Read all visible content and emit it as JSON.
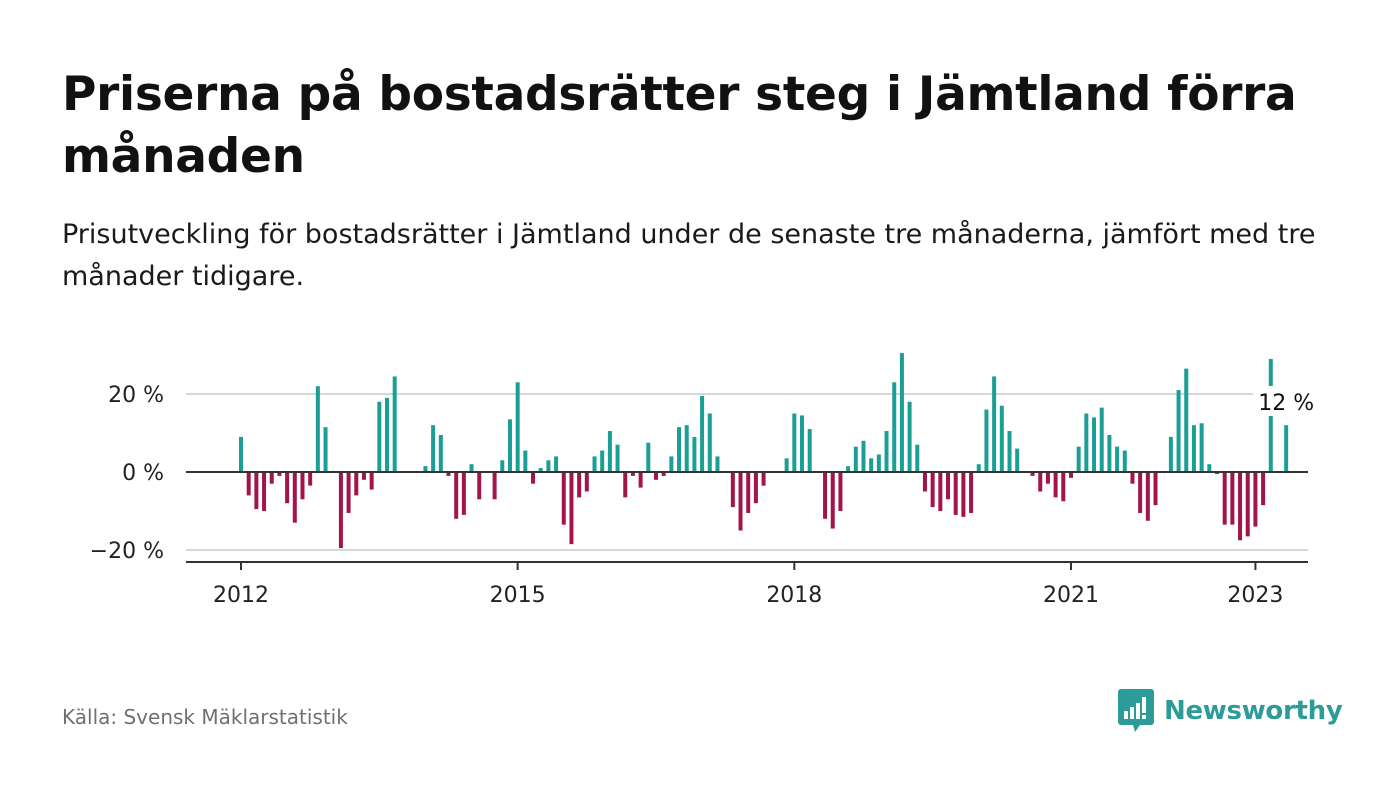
{
  "title": "Priserna på bostadsrätter steg i Jämtland förra månaden",
  "subtitle": "Prisutveckling för bostadsrätter i Jämtland under de senaste tre månaderna, jämfört med tre månader tidigare.",
  "source": "Källa: Svensk Mäklarstatistik",
  "brand": {
    "name": "Newsworthy",
    "icon": "newsworthy-logo-icon"
  },
  "colors": {
    "positive": "#1a9e96",
    "negative": "#a3154a",
    "zero_line": "#333333",
    "grid": "#d7d7d7",
    "brand": "#2d9c98"
  },
  "chart_data": {
    "type": "bar",
    "title": "",
    "xlabel": "",
    "ylabel": "",
    "ylim": [
      -23,
      30
    ],
    "y_ticks": [
      20,
      0,
      -20
    ],
    "y_tick_labels": [
      "20 %",
      "0 %",
      "−20 %"
    ],
    "x_ticks": [
      2012,
      2015,
      2018,
      2021,
      2023
    ],
    "x_tick_labels": [
      "2012",
      "2015",
      "2018",
      "2021",
      "2023"
    ],
    "start_year": 2012,
    "grid": true,
    "last_value_label": "12 %",
    "values": [
      9,
      -6,
      -9.5,
      -10,
      -3,
      -1,
      -8,
      -13,
      -7,
      -3.5,
      22,
      11.5,
      0,
      -19.5,
      -10.5,
      -6,
      -2,
      -4.5,
      18,
      19,
      24.5,
      0,
      0,
      0,
      1.5,
      12,
      9.5,
      -1,
      -12,
      -11,
      2,
      -7,
      0,
      -7,
      3,
      13.5,
      23,
      5.5,
      -3,
      1,
      3,
      4,
      -13.5,
      -18.5,
      -6.5,
      -5,
      4,
      5.5,
      10.5,
      7,
      -6.5,
      -1,
      -4,
      7.5,
      -2,
      -1,
      4,
      11.5,
      12,
      9,
      19.5,
      15,
      4,
      0,
      -9,
      -15,
      -10.5,
      -8,
      -3.5,
      0,
      0,
      3.5,
      15,
      14.5,
      11,
      0,
      -12,
      -14.5,
      -10,
      1.5,
      6.5,
      8,
      3.5,
      4.5,
      10.5,
      23,
      30.5,
      18,
      7,
      -5,
      -9,
      -10,
      -7,
      -11,
      -11.5,
      -10.5,
      2,
      16,
      24.5,
      17,
      10.5,
      6,
      0,
      -1,
      -5,
      -3,
      -6.5,
      -7.5,
      -1.5,
      6.5,
      15,
      14,
      16.5,
      9.5,
      6.5,
      5.5,
      -3,
      -10.5,
      -12.5,
      -8.5,
      0,
      9,
      21,
      26.5,
      12,
      12.5,
      2,
      -0.5,
      -13.5,
      -13.5,
      -17.5,
      -16.5,
      -14,
      -8.5,
      29,
      0,
      12
    ]
  }
}
